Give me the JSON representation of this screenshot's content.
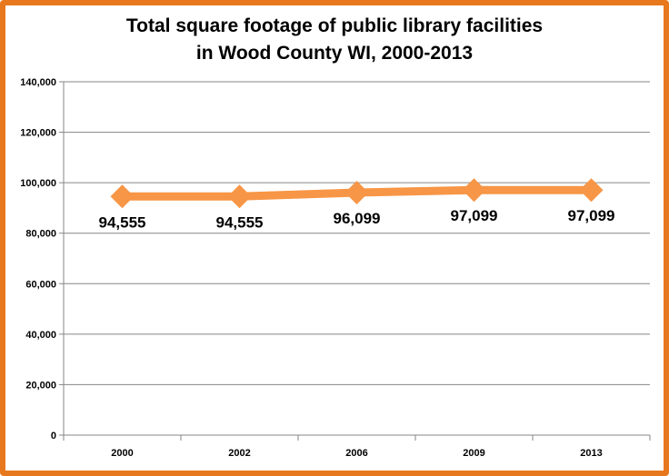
{
  "chart_data": {
    "type": "line",
    "title_line1": "Total square footage of public library facilities",
    "title_line2": "in Wood County WI, 2000-2013",
    "categories": [
      "2000",
      "2002",
      "2006",
      "2009",
      "2013"
    ],
    "values": [
      94555,
      94555,
      96099,
      97099,
      97099
    ],
    "data_labels": [
      "94,555",
      "94,555",
      "96,099",
      "97,099",
      "97,099"
    ],
    "ylim": [
      0,
      140000
    ],
    "yticks": [
      0,
      20000,
      40000,
      60000,
      80000,
      100000,
      120000,
      140000
    ],
    "ytick_labels": [
      "0",
      "20,000",
      "40,000",
      "60,000",
      "80,000",
      "100,000",
      "120,000",
      "140,000"
    ],
    "grid": true,
    "legend": "none",
    "colors": {
      "series": "#f79646",
      "frame": "#e8781e",
      "grid": "#868686"
    }
  }
}
